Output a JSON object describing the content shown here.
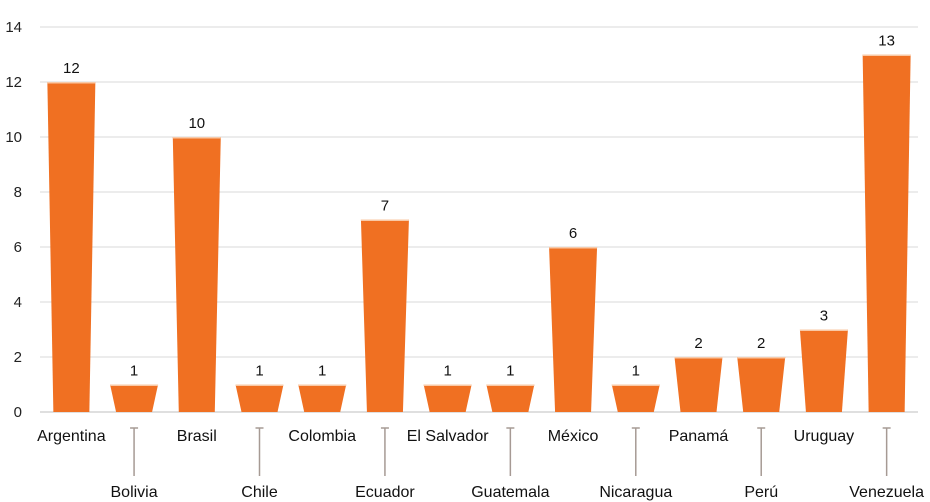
{
  "chart_data": {
    "type": "bar",
    "title": "",
    "xlabel": "",
    "ylabel": "",
    "ylim": [
      0,
      14
    ],
    "yticks": [
      0,
      2,
      4,
      6,
      8,
      10,
      12,
      14
    ],
    "grid": true,
    "legend": "none",
    "categories": [
      "Argentina",
      "Bolivia",
      "Brasil",
      "Chile",
      "Colombia",
      "Ecuador",
      "El Salvador",
      "Guatemala",
      "México",
      "Nicaragua",
      "Panamá",
      "Perú",
      "Uruguay",
      "Venezuela"
    ],
    "values": [
      12,
      1,
      10,
      1,
      1,
      7,
      1,
      1,
      6,
      1,
      2,
      2,
      3,
      13
    ],
    "data_labels": [
      "12",
      "1",
      "10",
      "1",
      "1",
      "7",
      "1",
      "1",
      "6",
      "1",
      "2",
      "2",
      "3",
      "13"
    ],
    "label_rows": [
      "upper",
      "lower",
      "upper",
      "lower",
      "upper",
      "lower",
      "upper",
      "lower",
      "upper",
      "lower",
      "upper",
      "lower",
      "upper",
      "lower"
    ],
    "bar_shape": "inverted-trapezoid",
    "colors": {
      "bar": "#F07022",
      "bar_top": "#F9C9A6",
      "grid": "#d9d9d9",
      "axis": "#bfbfbf",
      "leader": "#a69a94",
      "text": "#111111"
    }
  }
}
